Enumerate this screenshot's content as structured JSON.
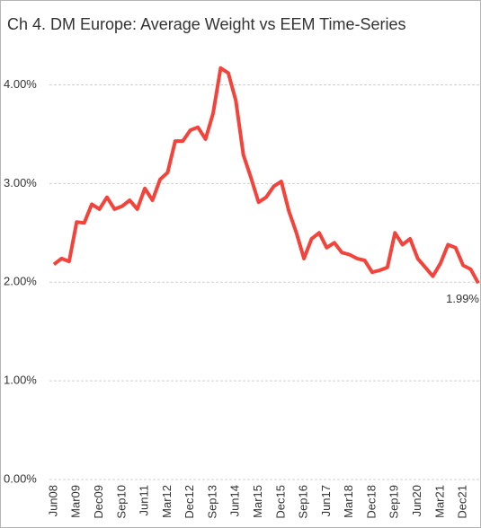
{
  "chart_data": {
    "type": "line",
    "title": "Ch 4. DM Europe:  Average Weight vs EEM Time-Series",
    "categories": [
      "Jun08",
      null,
      null,
      "Mar09",
      null,
      null,
      "Dec09",
      null,
      null,
      "Sep10",
      null,
      null,
      "Jun11",
      null,
      null,
      "Mar12",
      null,
      null,
      "Dec12",
      null,
      null,
      "Sep13",
      null,
      null,
      "Jun14",
      null,
      null,
      "Mar15",
      null,
      null,
      "Dec15",
      null,
      null,
      "Sep16",
      null,
      null,
      "Jun17",
      null,
      null,
      "Mar18",
      null,
      null,
      "Dec18",
      null,
      null,
      "Sep19",
      null,
      null,
      "Jun20",
      null,
      null,
      "Mar21",
      null,
      null,
      "Dec21",
      null,
      null
    ],
    "series": [
      {
        "name": "DM Europe",
        "color": "#f4433a",
        "values": [
          2.18,
          2.24,
          2.21,
          2.61,
          2.6,
          2.79,
          2.74,
          2.86,
          2.74,
          2.77,
          2.83,
          2.74,
          2.95,
          2.83,
          3.04,
          3.11,
          3.43,
          3.43,
          3.54,
          3.57,
          3.45,
          3.71,
          4.17,
          4.12,
          3.84,
          3.29,
          3.06,
          2.81,
          2.86,
          2.97,
          3.02,
          2.72,
          2.5,
          2.24,
          2.44,
          2.5,
          2.35,
          2.4,
          2.3,
          2.28,
          2.24,
          2.22,
          2.1,
          2.12,
          2.15,
          2.5,
          2.38,
          2.44,
          2.24,
          2.15,
          2.06,
          2.19,
          2.38,
          2.35,
          2.17,
          2.13,
          1.99
        ],
        "value_labels": [
          null,
          null,
          null,
          null,
          null,
          null,
          null,
          null,
          null,
          null,
          null,
          null,
          null,
          null,
          null,
          null,
          null,
          null,
          null,
          null,
          null,
          null,
          null,
          null,
          null,
          null,
          null,
          null,
          null,
          null,
          null,
          null,
          null,
          null,
          null,
          null,
          null,
          null,
          null,
          null,
          null,
          null,
          null,
          null,
          null,
          null,
          null,
          null,
          null,
          null,
          null,
          null,
          null,
          null,
          null,
          null,
          "1.99%"
        ]
      }
    ],
    "ylim": [
      0,
      4.45
    ],
    "yticks": [
      {
        "value": 0,
        "label": "0.00%"
      },
      {
        "value": 1,
        "label": "1.00%"
      },
      {
        "value": 2,
        "label": "2.00%"
      },
      {
        "value": 3,
        "label": "3.00%"
      },
      {
        "value": 4,
        "label": "4.00%"
      }
    ],
    "grid": true
  }
}
